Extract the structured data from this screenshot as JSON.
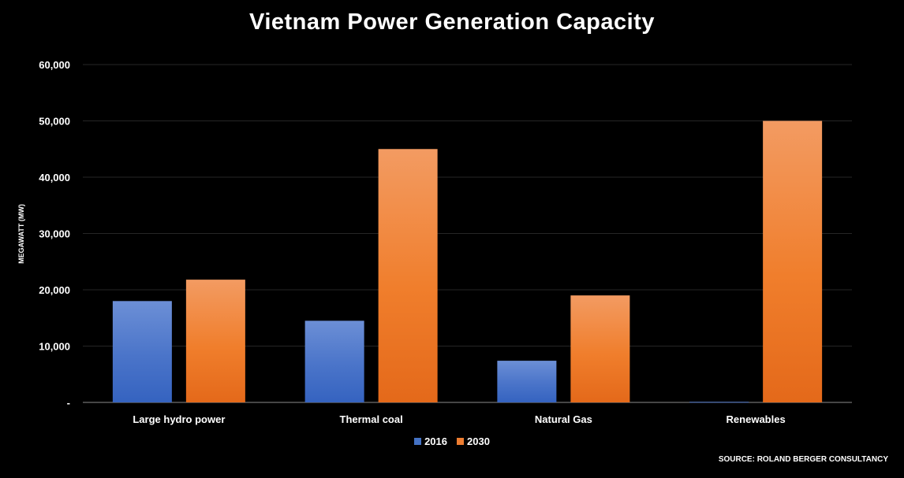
{
  "chart_data": {
    "type": "bar",
    "title": "Vietnam Power Generation Capacity",
    "ylabel": "MEGAWATT (MW)",
    "xlabel": "",
    "categories": [
      "Large hydro power",
      "Thermal coal",
      "Natural Gas",
      "Renewables"
    ],
    "series": [
      {
        "name": "2016",
        "values": [
          18000,
          14500,
          7400,
          100
        ],
        "color": "#4472C4"
      },
      {
        "name": "2030",
        "values": [
          21800,
          45000,
          19000,
          50000
        ],
        "color": "#ED7D31"
      }
    ],
    "ylim": [
      0,
      60000
    ],
    "yticks": [
      0,
      10000,
      20000,
      30000,
      40000,
      50000,
      60000
    ],
    "ytick_labels": [
      "-",
      "10,000",
      "20,000",
      "30,000",
      "40,000",
      "50,000",
      "60,000"
    ],
    "grid": true,
    "legend_position": "bottom",
    "source": "SOURCE: ROLAND BERGER CONSULTANCY"
  }
}
